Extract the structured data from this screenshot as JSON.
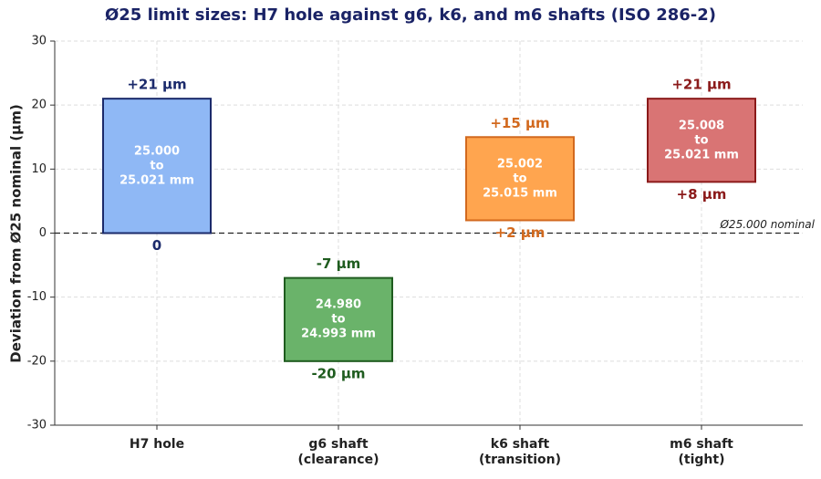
{
  "chart_data": {
    "type": "range_bar",
    "title": "Ø25 limit sizes: H7 hole against g6, k6, and m6 shafts (ISO 286-2)",
    "ylabel": "Deviation from Ø25 nominal (µm)",
    "categories": [
      [
        "H7 hole"
      ],
      [
        "g6 shaft",
        "(clearance)"
      ],
      [
        "k6 shaft",
        "(transition)"
      ],
      [
        "m6 shaft",
        "(tight)"
      ]
    ],
    "lower": [
      0,
      -20,
      2,
      8
    ],
    "upper": [
      21,
      -7,
      15,
      21
    ],
    "lower_labels": [
      "0",
      "-20 µm",
      "+2 µm",
      "+8 µm"
    ],
    "upper_labels": [
      "+21 µm",
      "-7 µm",
      "+15 µm",
      "+21 µm"
    ],
    "range_labels": [
      [
        "25.000",
        "to",
        "25.021 mm"
      ],
      [
        "24.980",
        "to",
        "24.993 mm"
      ],
      [
        "25.002",
        "to",
        "25.015 mm"
      ],
      [
        "25.008",
        "to",
        "25.021 mm"
      ]
    ],
    "colors": [
      "#8fb8f5",
      "#6ab36a",
      "#ffa54f",
      "#d97474"
    ],
    "edge_colors": [
      "#1b2a6b",
      "#1f5c1f",
      "#d2691e",
      "#8b1a1a"
    ],
    "reference_line": {
      "value": 0,
      "label": "Ø25.000 nominal"
    },
    "ylim": [
      -30,
      30
    ],
    "yticks": [
      -30,
      -20,
      -10,
      0,
      10,
      20,
      30
    ],
    "grid": true
  }
}
